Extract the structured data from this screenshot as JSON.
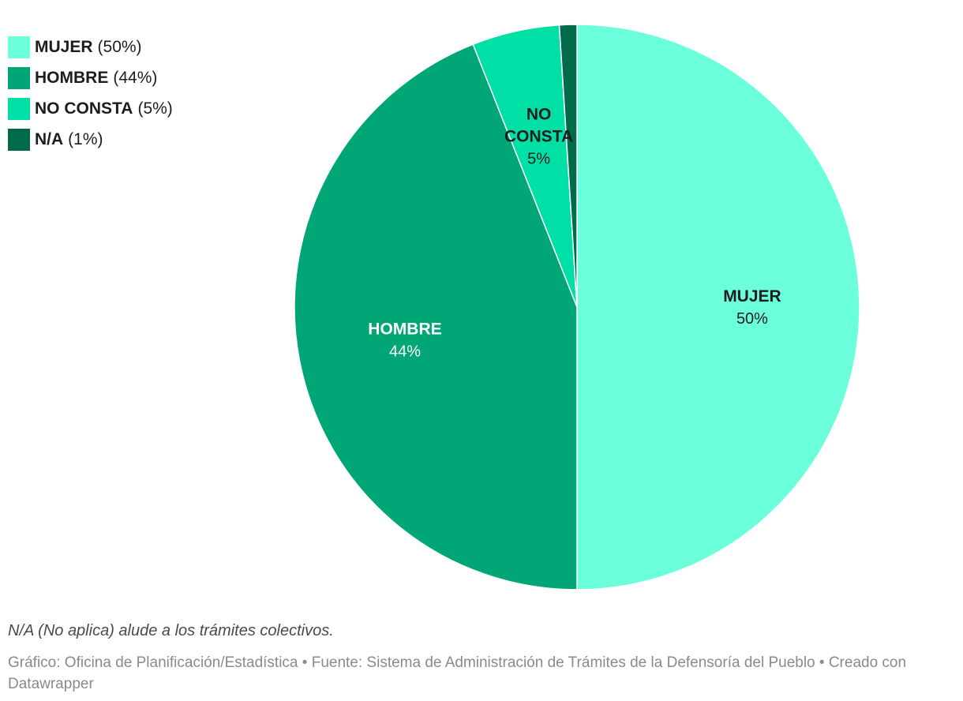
{
  "chart_data": {
    "type": "pie",
    "slices": [
      {
        "label": "MUJER",
        "value": 50,
        "value_label": "50%",
        "legend_value": "(50%)",
        "color": "#6cffdc",
        "label_color": "#1d1d1d",
        "label_lines": [
          "MUJER"
        ]
      },
      {
        "label": "HOMBRE",
        "value": 44,
        "value_label": "44%",
        "legend_value": "(44%)",
        "color": "#00a675",
        "label_color": "#ffffff",
        "label_lines": [
          "HOMBRE"
        ]
      },
      {
        "label": "NO CONSTA",
        "value": 5,
        "value_label": "5%",
        "legend_value": "(5%)",
        "color": "#00e0a6",
        "label_color": "#1d1d1d",
        "label_lines": [
          "NO",
          "CONSTA"
        ]
      },
      {
        "label": "N/A",
        "value": 1,
        "value_label": "",
        "legend_value": "(1%)",
        "color": "#006b4b",
        "label_color": "#ffffff",
        "label_lines": []
      }
    ],
    "legend_position": "top-left",
    "start_angle_deg": 0,
    "direction": "clockwise"
  },
  "notes": "N/A (No aplica) alude a los trámites colectivos.",
  "credits": "Gráfico: Oficina de Planificación/Estadística • Fuente: Sistema de Administración de Trámites de la Defensoría del Pueblo • Creado con Datawrapper"
}
